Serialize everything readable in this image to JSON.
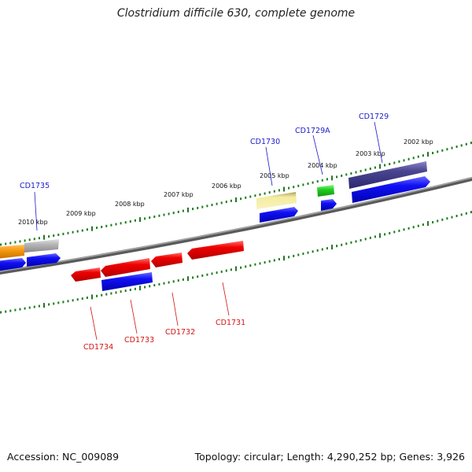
{
  "title": "Clostridium difficile 630, complete genome",
  "footer": {
    "accession": "Accession: NC_009089",
    "summary": "Topology: circular; Length: 4,290,252 bp; Genes: 3,926"
  },
  "colors": {
    "label_forward": "#1a1acc",
    "label_reverse": "#d21414",
    "tick": "#1f7a1f",
    "backbone": "#777777",
    "cds_forward": "#0a0af0",
    "cds_reverse": "#ee0000"
  },
  "kbp_labels": [
    "2010 kbp",
    "2009 kbp",
    "2008 kbp",
    "2007 kbp",
    "2006 kbp",
    "2005 kbp",
    "2004 kbp",
    "2003 kbp",
    "2002 kbp"
  ],
  "gene_labels": {
    "cd1735": "CD1735",
    "cd1730": "CD1730",
    "cd1729a": "CD1729A",
    "cd1729": "CD1729",
    "cd1734": "CD1734",
    "cd1733": "CD1733",
    "cd1732": "CD1732",
    "cd1731": "CD1731"
  }
}
